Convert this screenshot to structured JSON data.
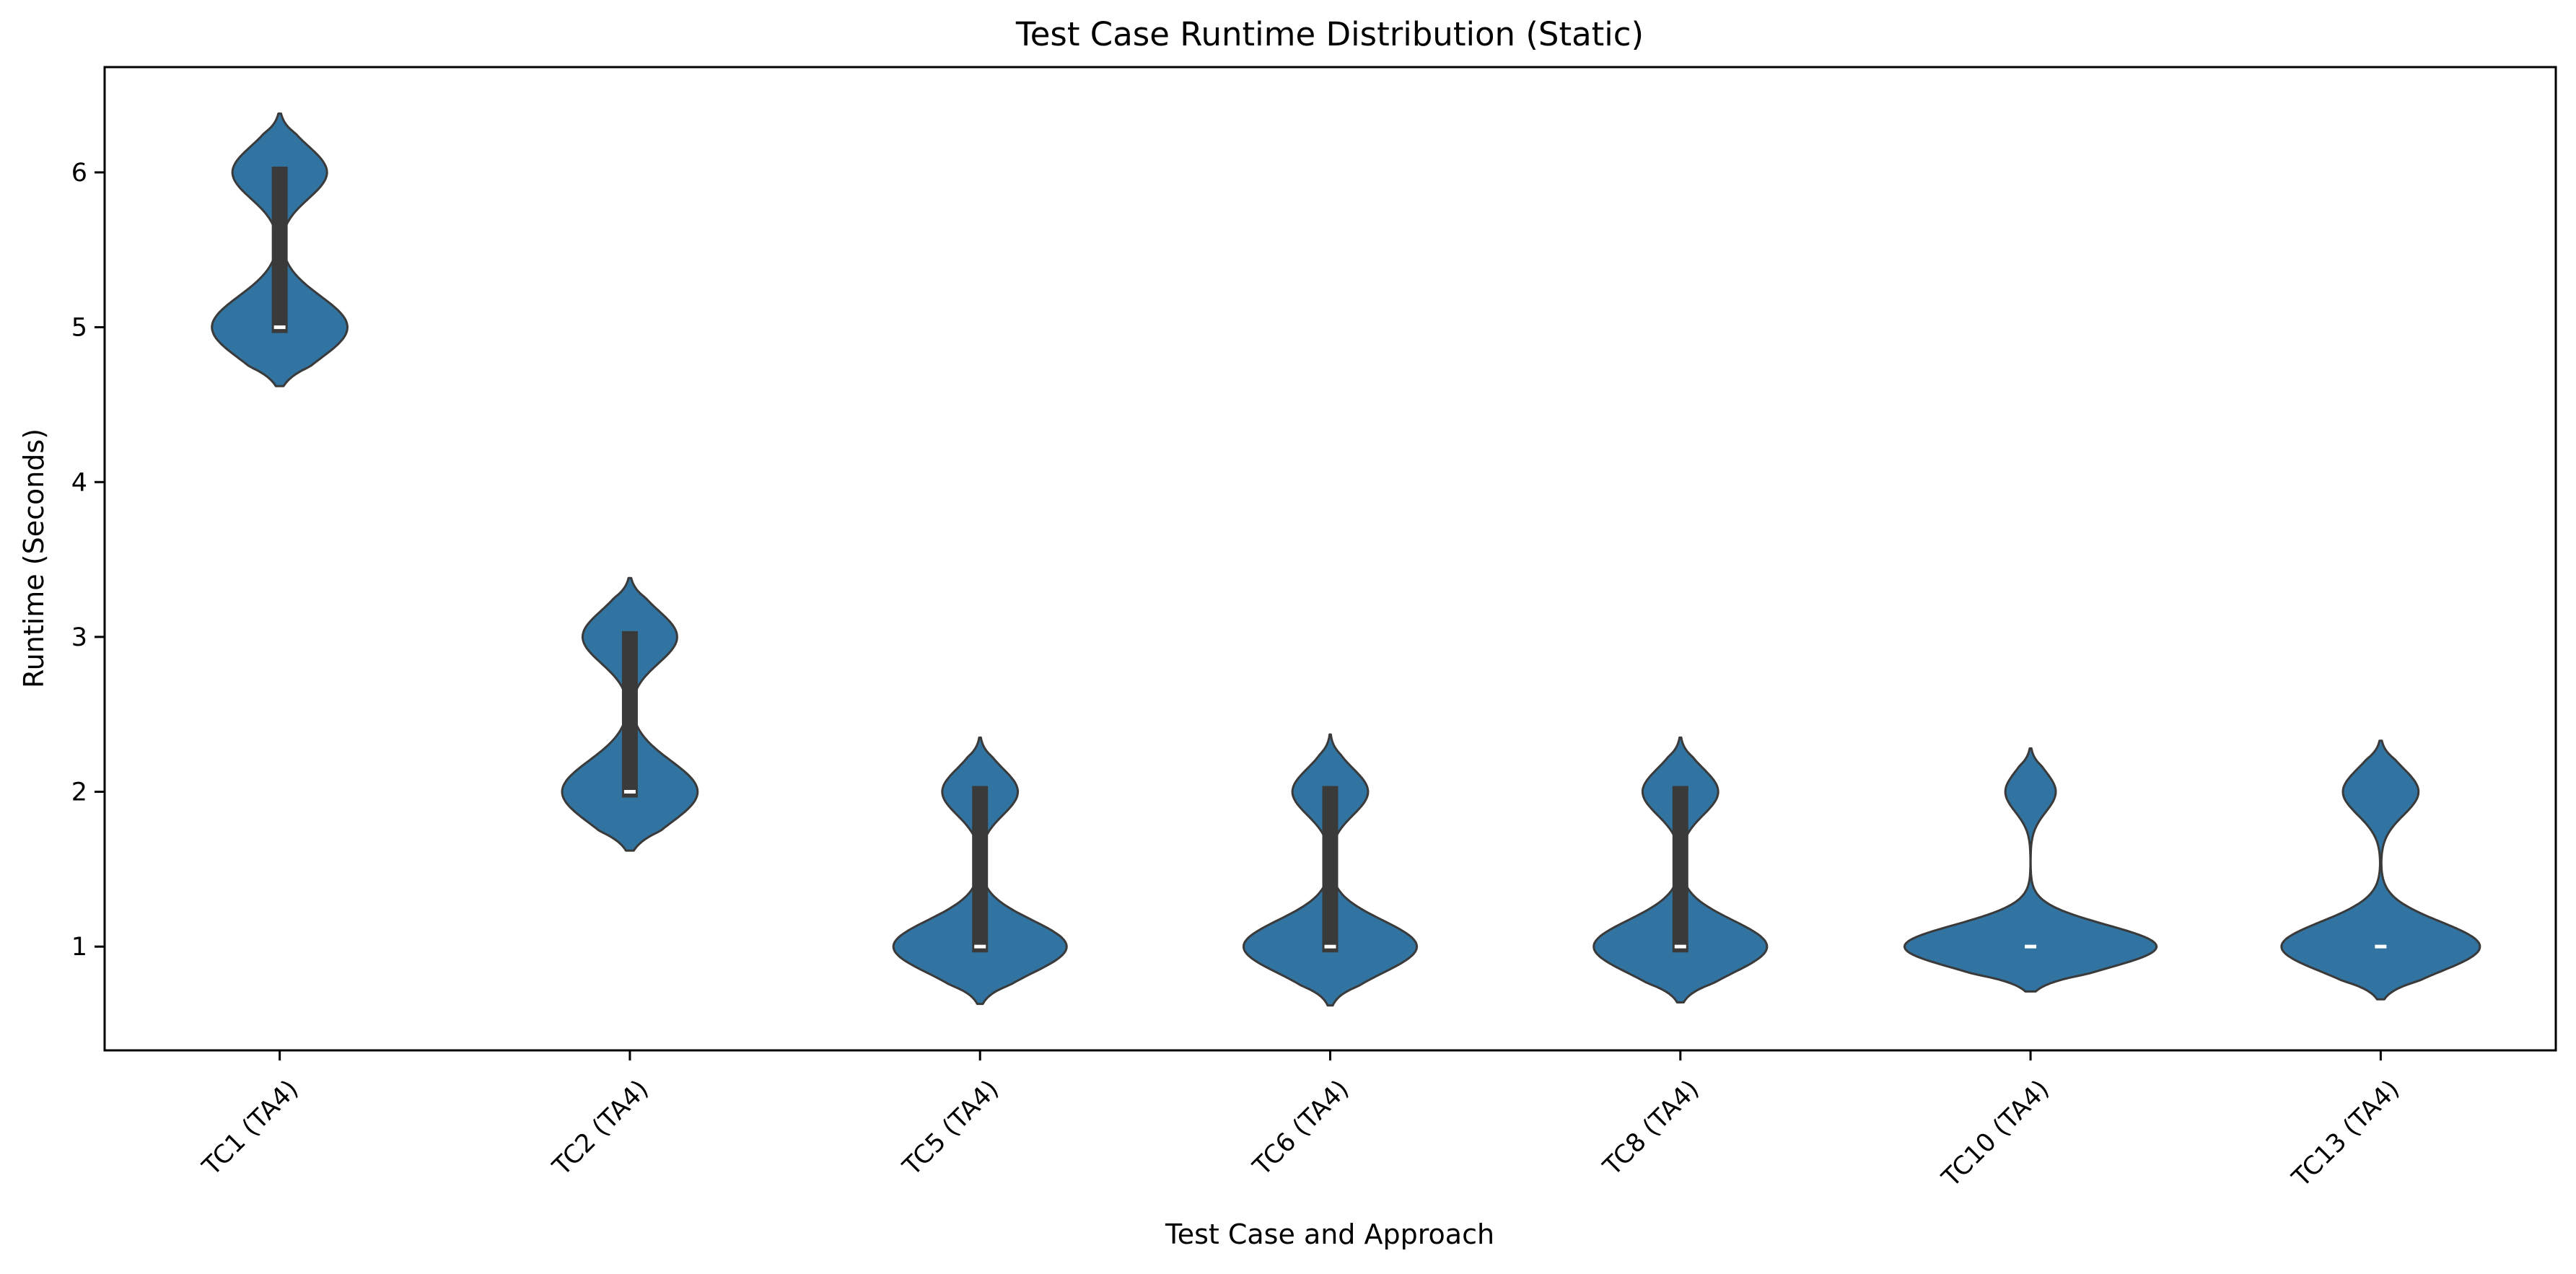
{
  "chart_data": {
    "type": "violin",
    "title": "Test Case Runtime Distribution (Static)",
    "xlabel": "Test Case and Approach",
    "ylabel": "Runtime (Seconds)",
    "categories": [
      "TC1 (TA4)",
      "TC2 (TA4)",
      "TC5 (TA4)",
      "TC6 (TA4)",
      "TC8 (TA4)",
      "TC10 (TA4)",
      "TC13 (TA4)"
    ],
    "ylim": [
      0.33,
      6.68
    ],
    "yticks": [
      1,
      2,
      3,
      4,
      5,
      6
    ],
    "grid": false,
    "colors": {
      "violin_fill": "#3274a1",
      "violin_edge": "#3a3a3a",
      "box": "#3a3a3a",
      "median": "#ffffff"
    },
    "violins": [
      {
        "category": "TC1 (TA4)",
        "min": 4.62,
        "max": 6.38,
        "q1": 5.0,
        "median": 5.0,
        "q3": 6.0,
        "modes": [
          {
            "y": 5.0,
            "w": 0.43,
            "s": 0.2
          },
          {
            "y": 6.0,
            "w": 0.3,
            "s": 0.17
          }
        ]
      },
      {
        "category": "TC2 (TA4)",
        "min": 1.62,
        "max": 3.38,
        "q1": 2.0,
        "median": 2.0,
        "q3": 3.0,
        "modes": [
          {
            "y": 2.0,
            "w": 0.43,
            "s": 0.2
          },
          {
            "y": 3.0,
            "w": 0.3,
            "s": 0.17
          }
        ]
      },
      {
        "category": "TC5 (TA4)",
        "min": 0.63,
        "max": 2.35,
        "q1": 1.0,
        "median": 1.0,
        "q3": 2.0,
        "modes": [
          {
            "y": 1.0,
            "w": 0.55,
            "s": 0.17
          },
          {
            "y": 2.0,
            "w": 0.24,
            "s": 0.15
          }
        ]
      },
      {
        "category": "TC6 (TA4)",
        "min": 0.62,
        "max": 2.37,
        "q1": 1.0,
        "median": 1.0,
        "q3": 2.0,
        "modes": [
          {
            "y": 1.0,
            "w": 0.55,
            "s": 0.17
          },
          {
            "y": 2.0,
            "w": 0.24,
            "s": 0.15
          }
        ]
      },
      {
        "category": "TC8 (TA4)",
        "min": 0.64,
        "max": 2.35,
        "q1": 1.0,
        "median": 1.0,
        "q3": 2.0,
        "modes": [
          {
            "y": 1.0,
            "w": 0.55,
            "s": 0.17
          },
          {
            "y": 2.0,
            "w": 0.24,
            "s": 0.15
          }
        ]
      },
      {
        "category": "TC10 (TA4)",
        "min": 0.71,
        "max": 2.28,
        "q1": 1.0,
        "median": 1.0,
        "q3": 1.0,
        "modes": [
          {
            "y": 1.0,
            "w": 0.8,
            "s": 0.14
          },
          {
            "y": 2.0,
            "w": 0.16,
            "s": 0.13
          }
        ]
      },
      {
        "category": "TC13 (TA4)",
        "min": 0.66,
        "max": 2.33,
        "q1": 1.0,
        "median": 1.0,
        "q3": 1.0,
        "modes": [
          {
            "y": 1.0,
            "w": 0.63,
            "s": 0.16
          },
          {
            "y": 2.0,
            "w": 0.24,
            "s": 0.15
          }
        ]
      }
    ]
  }
}
